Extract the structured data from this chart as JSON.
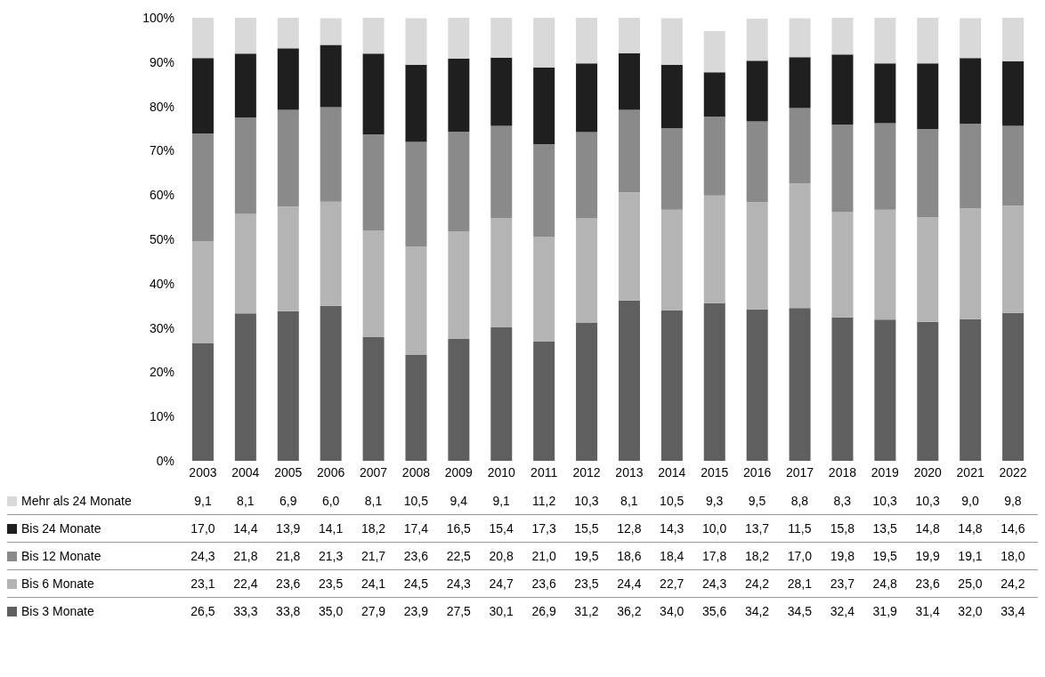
{
  "chart_data": {
    "type": "bar",
    "stacked": true,
    "legend": "bottom left",
    "categories": [
      "2003",
      "2004",
      "2005",
      "2006",
      "2007",
      "2008",
      "2009",
      "2010",
      "2011",
      "2012",
      "2013",
      "2014",
      "2015",
      "2016",
      "2017",
      "2018",
      "2019",
      "2020",
      "2021",
      "2022"
    ],
    "ylim": [
      0,
      100
    ],
    "yticks": [
      {
        "value": 0,
        "label": "0%"
      },
      {
        "value": 10,
        "label": "10%"
      },
      {
        "value": 20,
        "label": "20%"
      },
      {
        "value": 30,
        "label": "30%"
      },
      {
        "value": 40,
        "label": "40%"
      },
      {
        "value": 50,
        "label": "50%"
      },
      {
        "value": 60,
        "label": "60%"
      },
      {
        "value": 70,
        "label": "70%"
      },
      {
        "value": 80,
        "label": "80%"
      },
      {
        "value": 90,
        "label": "90%"
      },
      {
        "value": 100,
        "label": "100%"
      }
    ],
    "series": [
      {
        "name": "Bis 3 Monate",
        "color": "#5f5f5f",
        "values": [
          26.5,
          33.3,
          33.8,
          35.0,
          27.9,
          23.9,
          27.5,
          30.1,
          26.9,
          31.2,
          36.2,
          34.0,
          35.6,
          34.2,
          34.5,
          32.4,
          31.9,
          31.4,
          32.0,
          33.4
        ],
        "value_labels": [
          "26,5",
          "33,3",
          "33,8",
          "35,0",
          "27,9",
          "23,9",
          "27,5",
          "30,1",
          "26,9",
          "31,2",
          "36,2",
          "34,0",
          "35,6",
          "34,2",
          "34,5",
          "32,4",
          "31,9",
          "31,4",
          "32,0",
          "33,4"
        ]
      },
      {
        "name": "Bis 6 Monate",
        "color": "#b4b4b4",
        "values": [
          23.1,
          22.4,
          23.6,
          23.5,
          24.1,
          24.5,
          24.3,
          24.7,
          23.6,
          23.5,
          24.4,
          22.7,
          24.3,
          24.2,
          28.1,
          23.7,
          24.8,
          23.6,
          25.0,
          24.2
        ],
        "value_labels": [
          "23,1",
          "22,4",
          "23,6",
          "23,5",
          "24,1",
          "24,5",
          "24,3",
          "24,7",
          "23,6",
          "23,5",
          "24,4",
          "22,7",
          "24,3",
          "24,2",
          "28,1",
          "23,7",
          "24,8",
          "23,6",
          "25,0",
          "24,2"
        ]
      },
      {
        "name": "Bis 12 Monate",
        "color": "#8a8a8a",
        "values": [
          24.3,
          21.8,
          21.8,
          21.3,
          21.7,
          23.6,
          22.5,
          20.8,
          21.0,
          19.5,
          18.6,
          18.4,
          17.8,
          18.2,
          17.0,
          19.8,
          19.5,
          19.9,
          19.1,
          18.0
        ],
        "value_labels": [
          "24,3",
          "21,8",
          "21,8",
          "21,3",
          "21,7",
          "23,6",
          "22,5",
          "20,8",
          "21,0",
          "19,5",
          "18,6",
          "18,4",
          "17,8",
          "18,2",
          "17,0",
          "19,8",
          "19,5",
          "19,9",
          "19,1",
          "18,0"
        ]
      },
      {
        "name": "Bis 24 Monate",
        "color": "#1f1f1f",
        "values": [
          17.0,
          14.4,
          13.9,
          14.1,
          18.2,
          17.4,
          16.5,
          15.4,
          17.3,
          15.5,
          12.8,
          14.3,
          10.0,
          13.7,
          11.5,
          15.8,
          13.5,
          14.8,
          14.8,
          14.6
        ],
        "value_labels": [
          "17,0",
          "14,4",
          "13,9",
          "14,1",
          "18,2",
          "17,4",
          "16,5",
          "15,4",
          "17,3",
          "15,5",
          "12,8",
          "14,3",
          "10,0",
          "13,7",
          "11,5",
          "15,8",
          "13,5",
          "14,8",
          "14,8",
          "14,6"
        ]
      },
      {
        "name": "Mehr als 24 Monate",
        "color": "#d9d9d9",
        "values": [
          9.1,
          8.1,
          6.9,
          6.0,
          8.1,
          10.5,
          9.4,
          9.1,
          11.2,
          10.3,
          8.1,
          10.5,
          9.3,
          9.5,
          8.8,
          8.3,
          10.3,
          10.3,
          9.0,
          9.8
        ],
        "value_labels": [
          "9,1",
          "8,1",
          "6,9",
          "6,0",
          "8,1",
          "10,5",
          "9,4",
          "9,1",
          "11,2",
          "10,3",
          "8,1",
          "10,5",
          "9,3",
          "9,5",
          "8,8",
          "8,3",
          "10,3",
          "10,3",
          "9,0",
          "9,8"
        ]
      }
    ]
  }
}
